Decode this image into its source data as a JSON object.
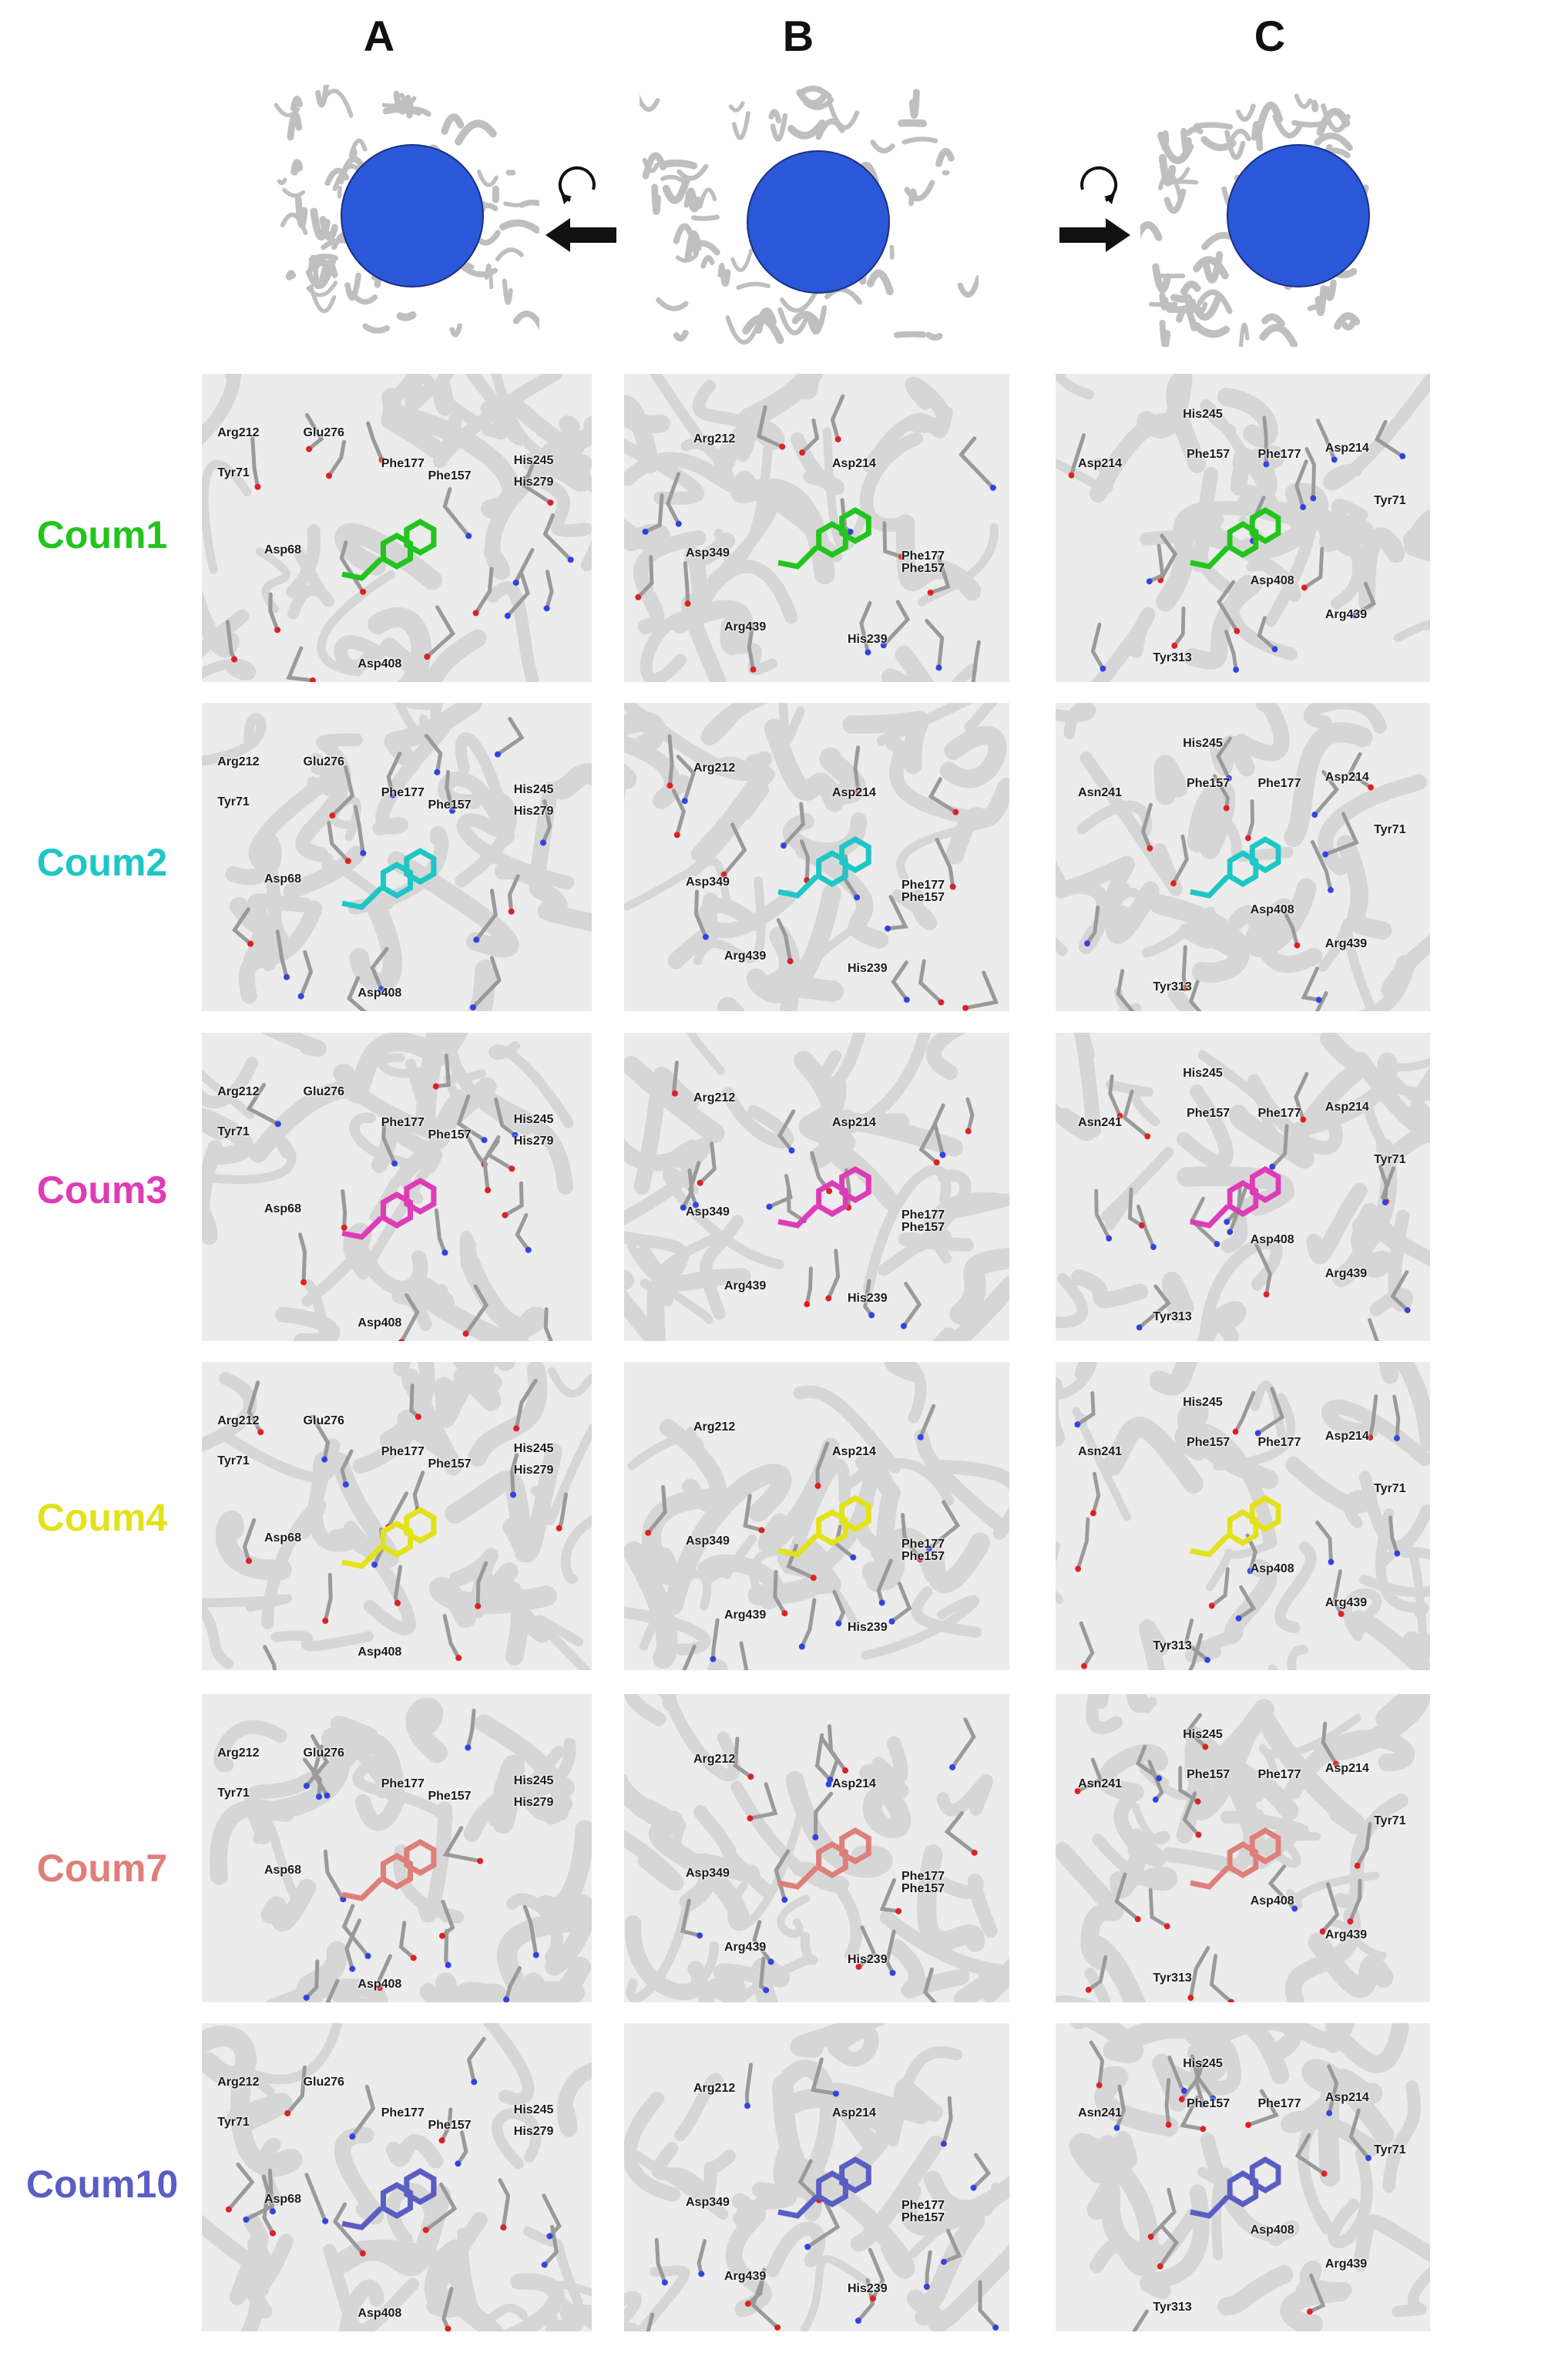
{
  "columns": [
    "A",
    "B",
    "C"
  ],
  "rows": [
    {
      "label": "Coum1",
      "color": "#22c41e"
    },
    {
      "label": "Coum2",
      "color": "#1fc6c6"
    },
    {
      "label": "Coum3",
      "color": "#de3cb7"
    },
    {
      "label": "Coum4",
      "color": "#e2e21a"
    },
    {
      "label": "Coum7",
      "color": "#de7f7a"
    },
    {
      "label": "Coum10",
      "color": "#5a5ec2"
    }
  ],
  "overview": {
    "sphere_color": "#2a58d8",
    "protein_color": "#bfbfbf"
  },
  "residues": {
    "A": [
      "Arg212",
      "Glu276",
      "Phe177",
      "His245",
      "Phe157",
      "His279",
      "Tyr71",
      "Asp68",
      "Asp408"
    ],
    "B": [
      "Arg212",
      "Asp214",
      "Asp349",
      "Phe177",
      "Phe157",
      "Arg439",
      "His239"
    ],
    "C_first": [
      "Asp214",
      "His245",
      "Asp214",
      "Phe157",
      "Phe177",
      "Tyr71",
      "Asp408",
      "Arg439",
      "Tyr313"
    ],
    "C": [
      "Asn241",
      "His245",
      "Asp214",
      "Phe157",
      "Phe177",
      "Tyr71",
      "Asp408",
      "Arg439",
      "Tyr313"
    ]
  }
}
